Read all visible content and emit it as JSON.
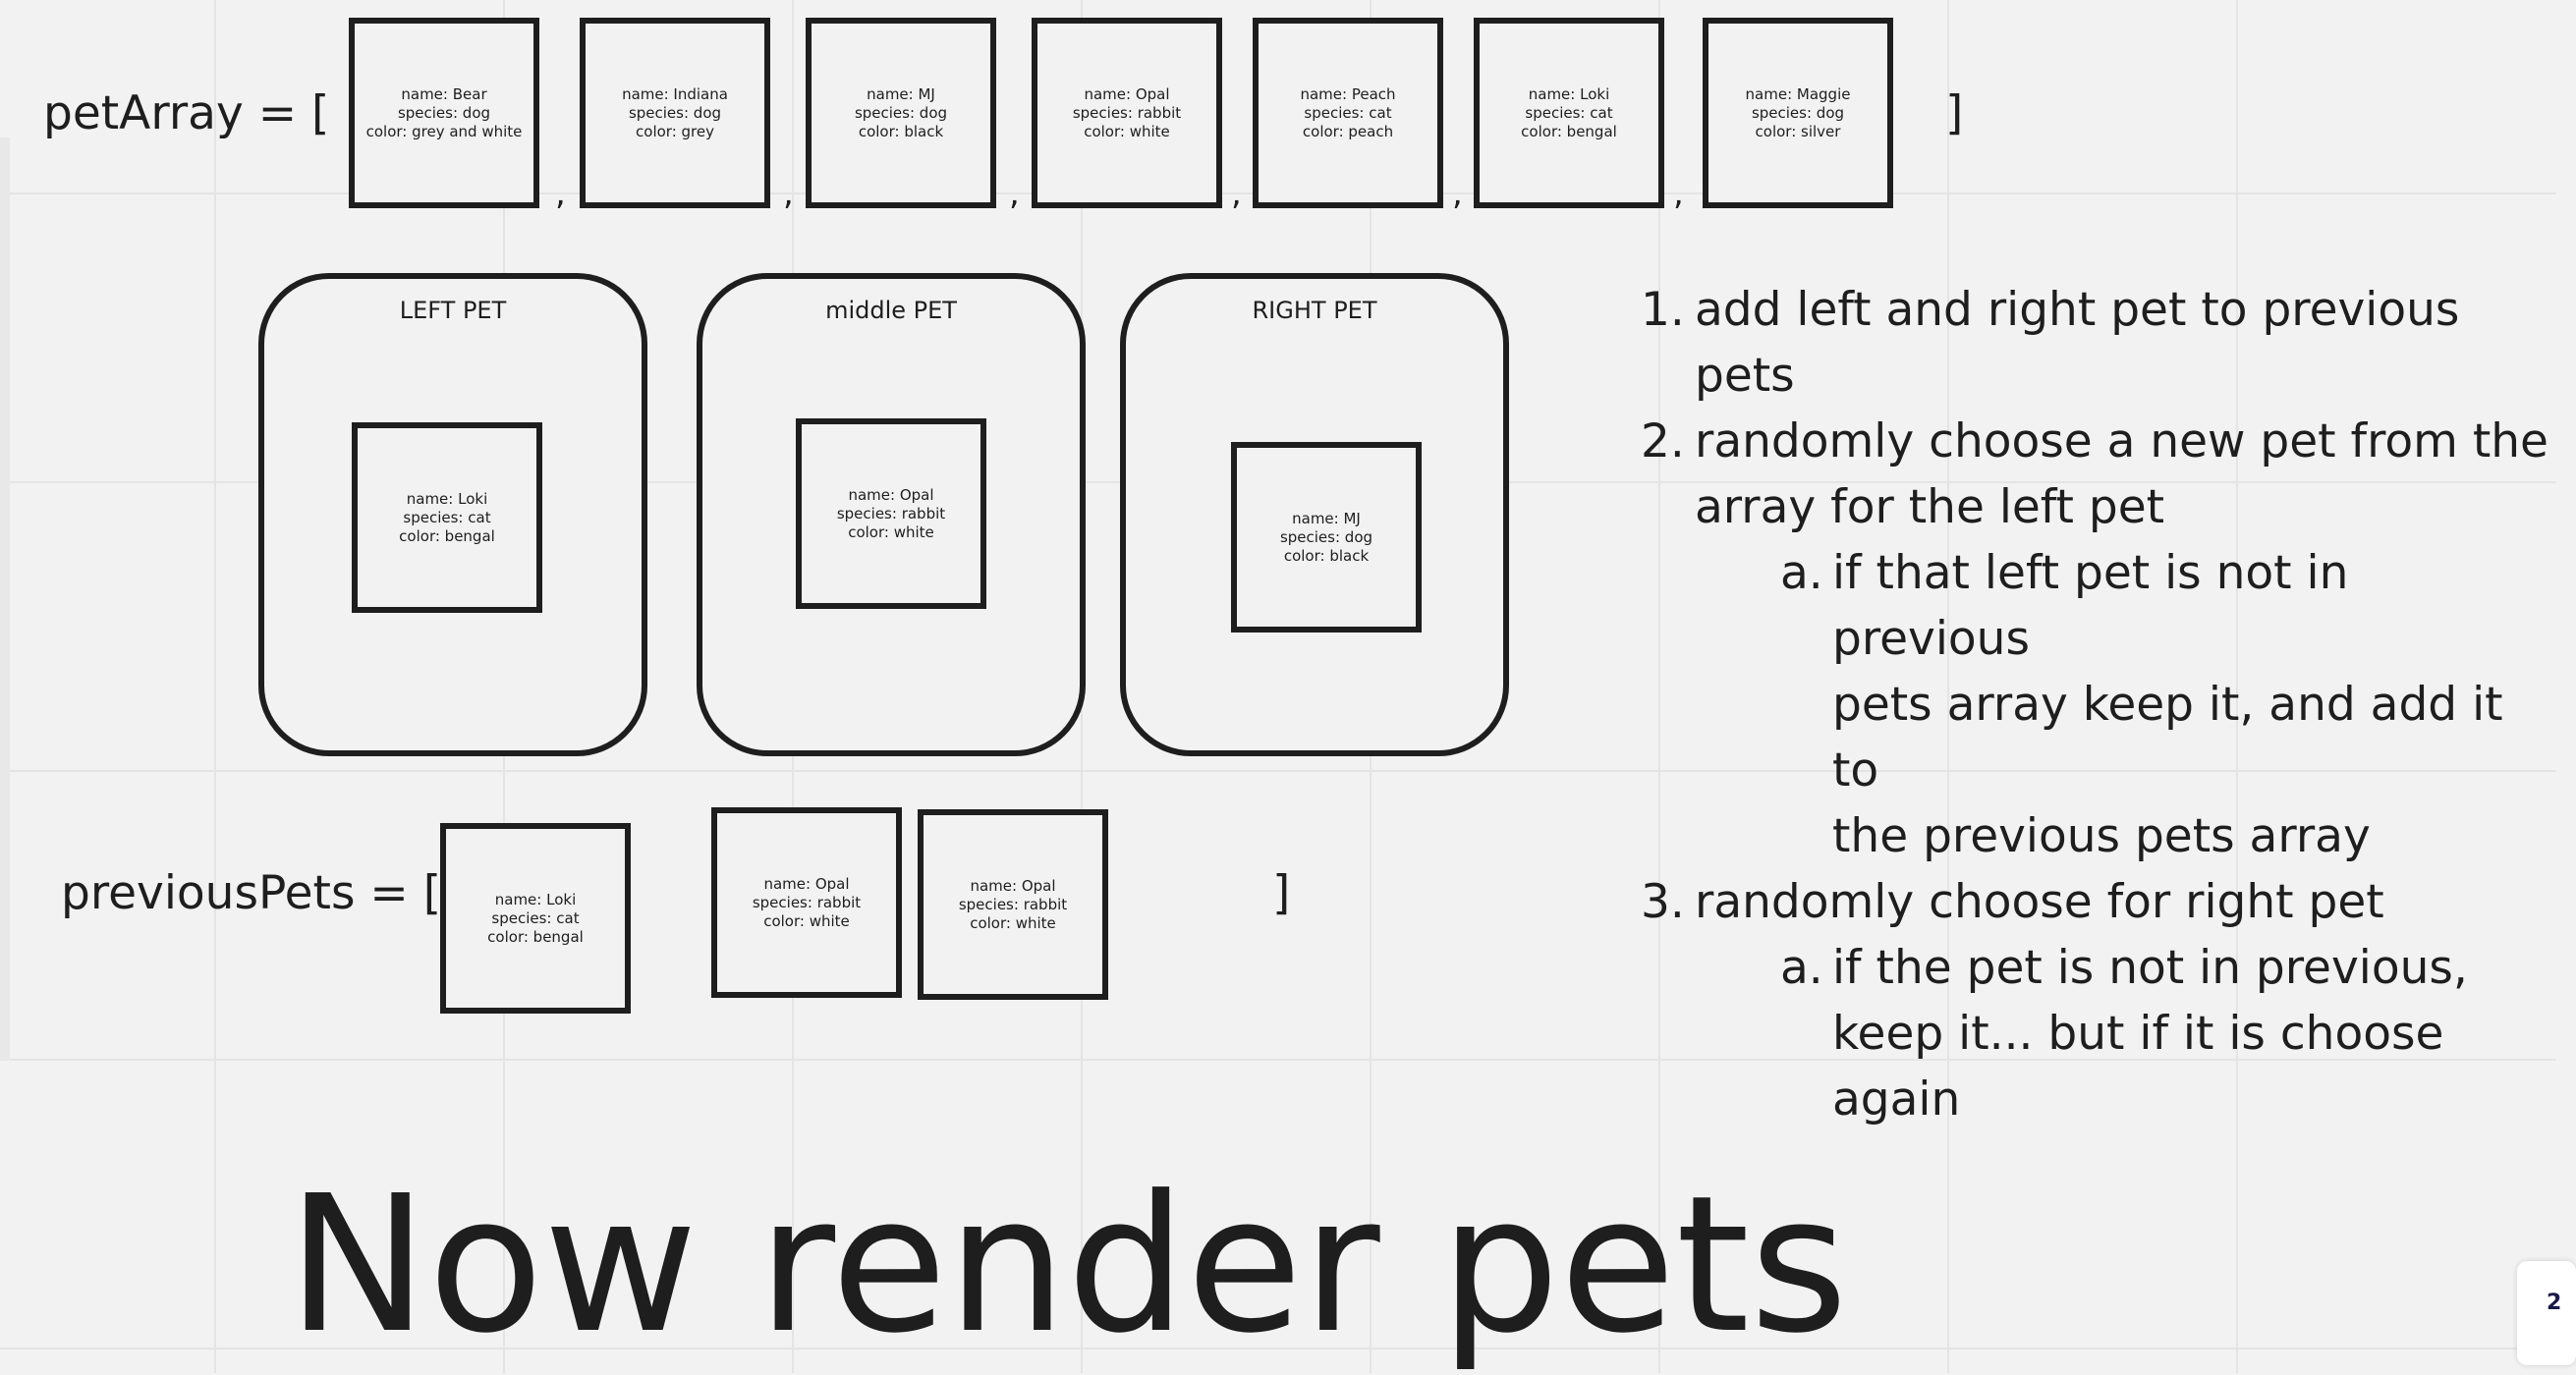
{
  "pet_array": {
    "label": "petArray = [",
    "close": "]",
    "separator": ",",
    "items": [
      {
        "name": "name: Bear",
        "species": "species: dog",
        "color": "color: grey and white"
      },
      {
        "name": "name: Indiana",
        "species": "species: dog",
        "color": "color: grey"
      },
      {
        "name": "name: MJ",
        "species": "species: dog",
        "color": "color: black"
      },
      {
        "name": "name: Opal",
        "species": "species: rabbit",
        "color": "color: white"
      },
      {
        "name": "name: Peach",
        "species": "species: cat",
        "color": "color: peach"
      },
      {
        "name": "name: Loki",
        "species": "species: cat",
        "color": "color: bengal"
      },
      {
        "name": "name: Maggie",
        "species": "species: dog",
        "color": "color: silver"
      }
    ]
  },
  "slots": [
    {
      "title": "LEFT PET",
      "pet": {
        "name": "name: Loki",
        "species": "species: cat",
        "color": "color: bengal"
      }
    },
    {
      "title": "middle PET",
      "pet": {
        "name": "name: Opal",
        "species": "species: rabbit",
        "color": "color: white"
      }
    },
    {
      "title": "RIGHT PET",
      "pet": {
        "name": "name: MJ",
        "species": "species: dog",
        "color": "color: black"
      }
    }
  ],
  "previous_pets": {
    "label": "previousPets = [",
    "close": "]",
    "items": [
      {
        "name": "name: Loki",
        "species": "species: cat",
        "color": "color: bengal"
      },
      {
        "name": "name: Opal",
        "species": "species: rabbit",
        "color": "color: white"
      },
      {
        "name": "name: Opal",
        "species": "species: rabbit",
        "color": "color: white"
      }
    ]
  },
  "steps": [
    {
      "marker": "1.",
      "text": "add left and right pet to previous pets"
    },
    {
      "marker": "2.",
      "text": "randomly choose a new pet from the array for the left pet",
      "lines": [
        "randomly choose a new pet from the",
        "array for the left pet"
      ]
    },
    {
      "marker": "a.",
      "lines": [
        "if that left pet is not in previous",
        "pets array keep it, and add it to",
        "the previous pets array"
      ]
    },
    {
      "marker": "3.",
      "text": "randomly choose for right pet"
    },
    {
      "marker": "a.",
      "lines": [
        "if the pet is not in previous,",
        "keep it... but if it is choose",
        "again"
      ]
    }
  ],
  "heading": "Now render pets",
  "corner_badge": "2"
}
